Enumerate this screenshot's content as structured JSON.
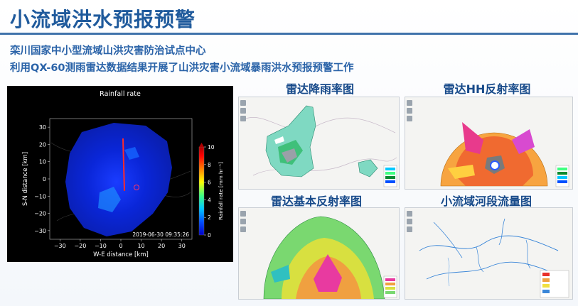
{
  "page": {
    "title": "小流域洪水预报预警",
    "subtitle1": "栾川国家中小型流域山洪灾害防治试点中心",
    "subtitle2": "利用QX-60测雨雷达数据结果开展了山洪灾害小流域暴雨洪水预报预警工作"
  },
  "radar_chart": {
    "chart_data": {
      "type": "heatmap",
      "title": "Rainfall rate",
      "xlabel": "W-E distance [km]",
      "ylabel": "S-N distance [km]",
      "xlim": [
        -35,
        35
      ],
      "ylim": [
        -35,
        35
      ],
      "x_ticks": [
        -30,
        -20,
        -10,
        0,
        10,
        20,
        30
      ],
      "y_ticks": [
        30,
        20,
        10,
        0,
        -10,
        -20,
        -30
      ],
      "x_tick_labels": [
        "−30",
        "−20",
        "−10",
        "0",
        "10",
        "20",
        "30"
      ],
      "y_tick_labels": [
        "30",
        "20",
        "10",
        "0",
        "−10",
        "−20",
        "−30"
      ],
      "colorbar": {
        "label": "Rainfall rate [mm hr⁻¹]",
        "min": 0,
        "max": 10,
        "ticks": [
          0,
          2,
          4,
          6,
          8,
          10
        ],
        "colors": [
          "#0000c8",
          "#0050ff",
          "#00c8ff",
          "#40ff80",
          "#ffff00",
          "#ff8000",
          "#ff0000",
          "#b00000"
        ]
      },
      "timestamp": "2019-06-30 09:35:26"
    }
  },
  "panels": [
    {
      "title": "雷达降雨率图"
    },
    {
      "title": "雷达HH反射率图"
    },
    {
      "title": "雷达基本反射率图"
    },
    {
      "title": "小流域河段流量图"
    }
  ]
}
